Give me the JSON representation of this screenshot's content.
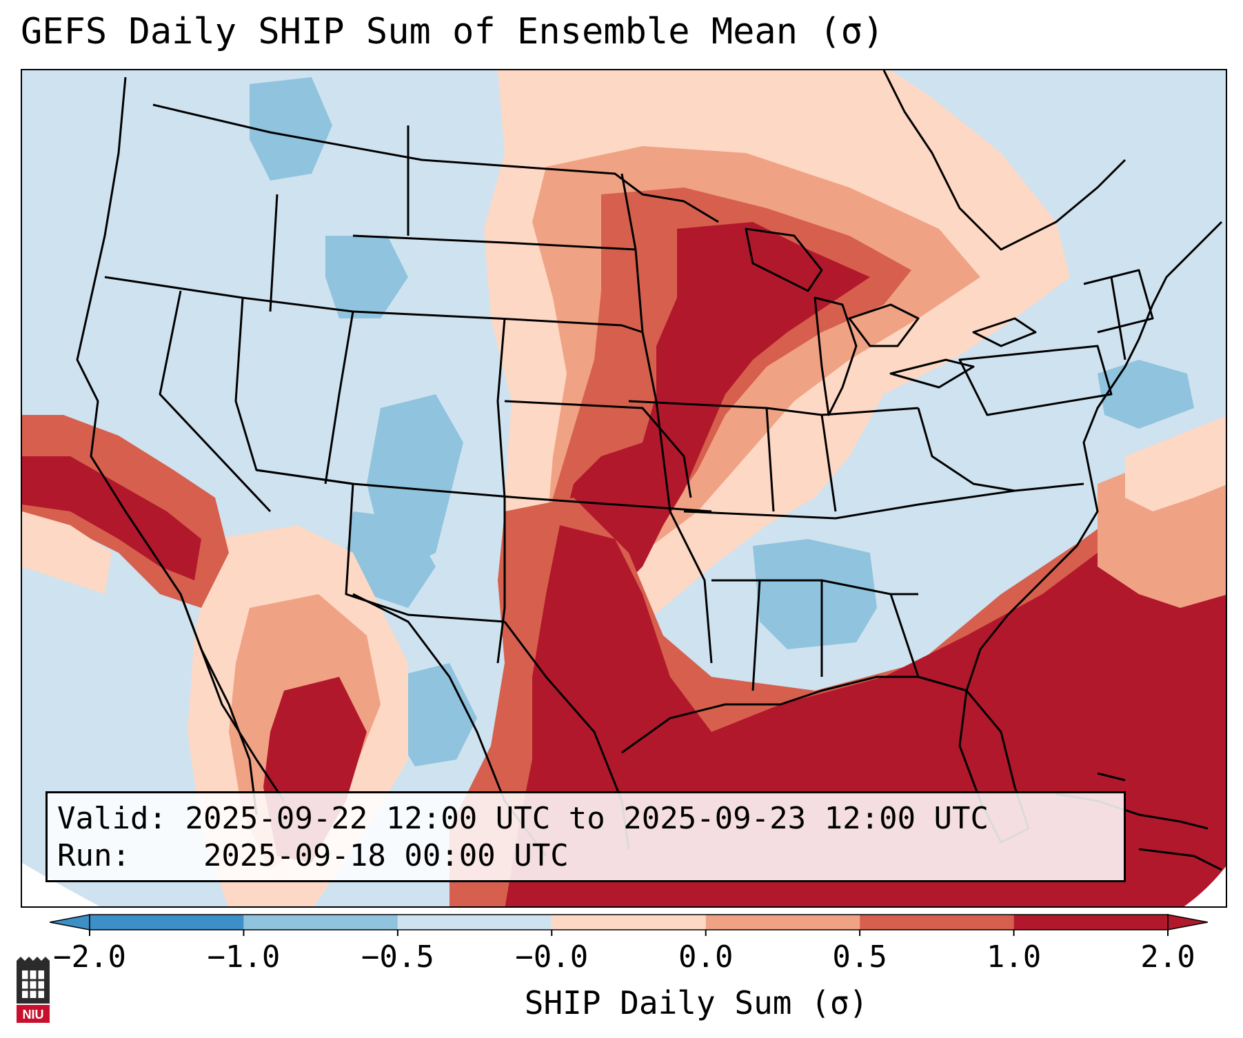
{
  "title": "GEFS Daily SHIP Sum of Ensemble Mean (σ)",
  "info": {
    "valid_label": "Valid:",
    "valid_value": "2025-09-22 12:00 UTC to 2025-09-23 12:00 UTC",
    "run_label": "Run:",
    "run_value": "2025-09-18 00:00 UTC"
  },
  "colorbar": {
    "title": "SHIP Daily Sum (σ)",
    "ticks": [
      "−2.0",
      "−1.0",
      "−0.5",
      "−0.0",
      "0.0",
      "0.5",
      "1.0",
      "2.0"
    ],
    "colors": [
      "#3d8fc7",
      "#90c3de",
      "#cfe2ef",
      "#f7f7f7",
      "#fdd8c4",
      "#f0a285",
      "#d6604d",
      "#b2182b"
    ]
  },
  "logo": {
    "text": "NIU",
    "icon": "niu-tower-logo-icon"
  },
  "map": {
    "field": "SHIP daily sum anomaly",
    "region": "Contiguous United States and surrounding areas",
    "zones": [
      {
        "name": "background-neutral",
        "level": "-0.5 to -0.0",
        "color": "#cfe2ef"
      },
      {
        "name": "great-lakes-to-gulf-high",
        "level": ">1.0",
        "color": "#b2182b"
      },
      {
        "name": "southeast-atlantic-high",
        "level": ">1.0",
        "color": "#b2182b"
      },
      {
        "name": "southwest-low",
        "level": "-1.0 to -0.5",
        "color": "#90c3de"
      },
      {
        "name": "california-offshore-high",
        "level": ">1.0",
        "color": "#b2182b"
      },
      {
        "name": "mexico-high",
        "level": ">1.0",
        "color": "#b2182b"
      }
    ]
  }
}
